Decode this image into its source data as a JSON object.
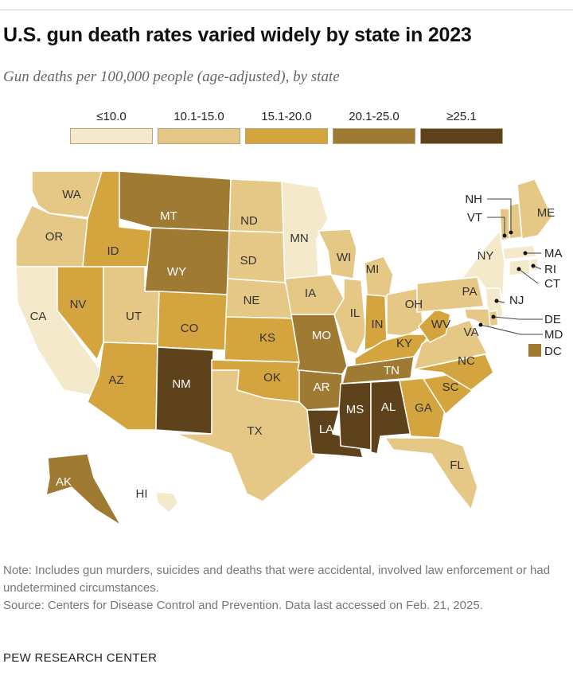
{
  "title": "U.S. gun death rates varied widely by state in 2023",
  "subtitle": "Gun deaths per 100,000 people (age-adjusted), by state",
  "legend": [
    {
      "label": "≤10.0",
      "color": "#f5e9cb"
    },
    {
      "label": "10.1-15.0",
      "color": "#e6c886"
    },
    {
      "label": "15.1-20.0",
      "color": "#d4a43f"
    },
    {
      "label": "20.1-25.0",
      "color": "#9f7a33"
    },
    {
      "label": "≥25.1",
      "color": "#5e421b"
    }
  ],
  "states": {
    "WA": "10.1-15.0",
    "OR": "10.1-15.0",
    "CA": "≤10.0",
    "NV": "15.1-20.0",
    "ID": "15.1-20.0",
    "MT": "20.1-25.0",
    "WY": "20.1-25.0",
    "UT": "10.1-15.0",
    "CO": "15.1-20.0",
    "AZ": "15.1-20.0",
    "NM": "≥25.1",
    "ND": "10.1-15.0",
    "SD": "10.1-15.0",
    "NE": "10.1-15.0",
    "KS": "15.1-20.0",
    "OK": "15.1-20.0",
    "TX": "10.1-15.0",
    "MN": "≤10.0",
    "IA": "10.1-15.0",
    "MO": "20.1-25.0",
    "AR": "20.1-25.0",
    "LA": "≥25.1",
    "WI": "10.1-15.0",
    "IL": "10.1-15.0",
    "MI": "10.1-15.0",
    "IN": "15.1-20.0",
    "OH": "10.1-15.0",
    "KY": "15.1-20.0",
    "TN": "20.1-25.0",
    "MS": "≥25.1",
    "AL": "≥25.1",
    "GA": "15.1-20.0",
    "FL": "10.1-15.0",
    "SC": "15.1-20.0",
    "NC": "15.1-20.0",
    "VA": "10.1-15.0",
    "WV": "15.1-20.0",
    "PA": "10.1-15.0",
    "NY": "≤10.0",
    "VT": "10.1-15.0",
    "NH": "10.1-15.0",
    "ME": "10.1-15.0",
    "MA": "≤10.0",
    "RI": "≤10.0",
    "CT": "≤10.0",
    "NJ": "≤10.0",
    "DE": "10.1-15.0",
    "MD": "10.1-15.0",
    "DC": "20.1-25.0",
    "AK": "20.1-25.0",
    "HI": "≤10.0"
  },
  "callouts": [
    "NH",
    "VT",
    "MA",
    "RI",
    "CT",
    "NJ",
    "DE",
    "MD",
    "DC"
  ],
  "note_text": "Note: Includes gun murders, suicides and deaths that were accidental, involved law enforcement or had undetermined circumstances.",
  "source_text": "Source: Centers for Disease Control and Prevention. Data last accessed on Feb. 21, 2025.",
  "brand": "PEW RESEARCH CENTER"
}
